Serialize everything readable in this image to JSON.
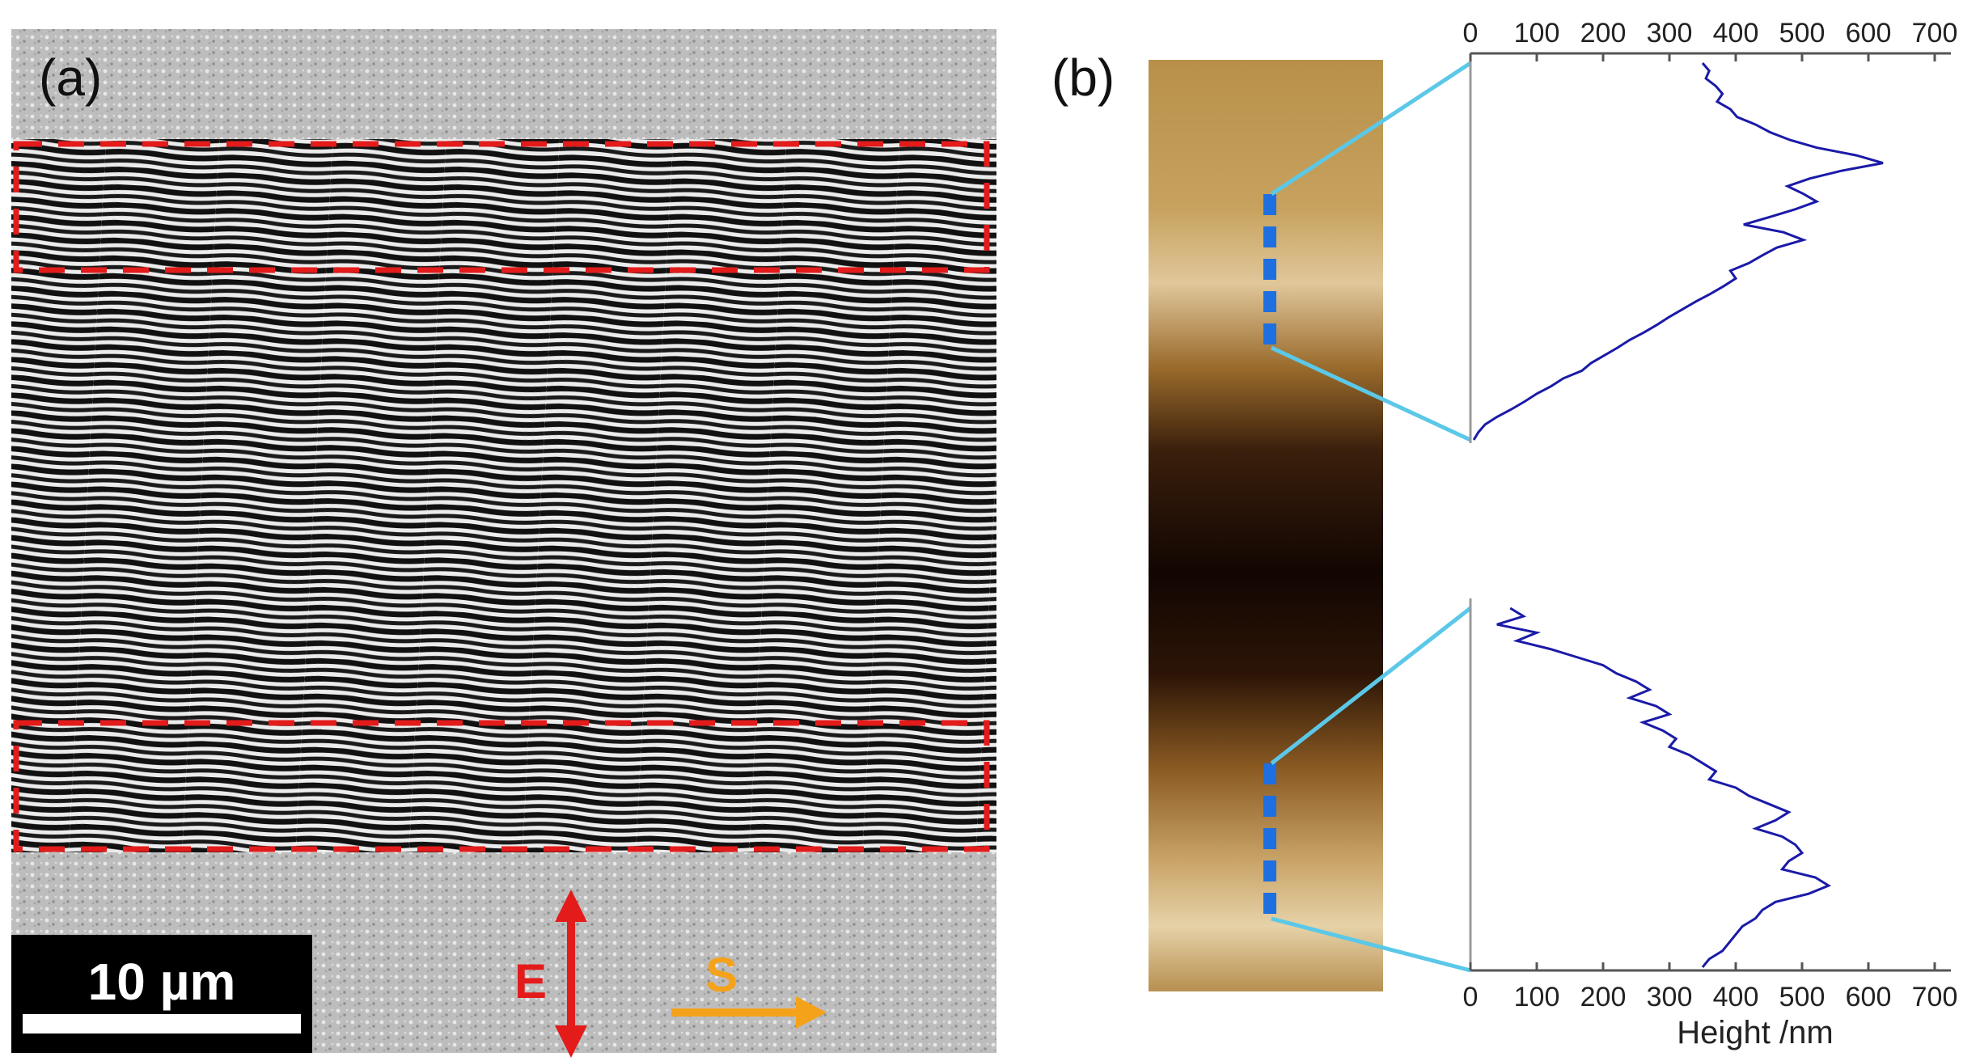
{
  "panel_a": {
    "label": "(a)",
    "scale_bar_label": "10 µm",
    "field_label": "E",
    "scan_label": "S",
    "colors": {
      "field": "#e31b1b",
      "scan": "#f5a21b",
      "roi_box": "#e31b1b"
    }
  },
  "panel_b": {
    "label": "(b)",
    "marker_color": "#1e6fe0",
    "connector_color": "#5bc8e8"
  },
  "chart_data": [
    {
      "type": "line",
      "orientation": "profile-vertical",
      "title": "",
      "xlabel": "",
      "ylabel": "",
      "xlim": [
        0,
        700
      ],
      "x_ticks": [
        "0",
        "100",
        "200",
        "300",
        "400",
        "500",
        "600",
        "700"
      ],
      "axis_position": "top",
      "series": [
        {
          "color": "#1a1aa8",
          "values": [
            350,
            360,
            355,
            370,
            380,
            372,
            392,
            402,
            430,
            452,
            482,
            522,
            582,
            622,
            560,
            512,
            478,
            502,
            522,
            490,
            452,
            412,
            472,
            502,
            462,
            440,
            420,
            392,
            400,
            382,
            362,
            340,
            320,
            300,
            282,
            262,
            240,
            222,
            202,
            182,
            168,
            140,
            122,
            100,
            82,
            62,
            40,
            22,
            12,
            5
          ]
        }
      ]
    },
    {
      "type": "line",
      "orientation": "profile-vertical",
      "title": "",
      "xlabel": "Height /nm",
      "ylabel": "",
      "xlim": [
        0,
        700
      ],
      "x_ticks": [
        "0",
        "100",
        "200",
        "300",
        "400",
        "500",
        "600",
        "700"
      ],
      "axis_position": "bottom",
      "series": [
        {
          "color": "#1a1aa8",
          "values": [
            60,
            80,
            40,
            100,
            70,
            120,
            160,
            200,
            220,
            250,
            270,
            240,
            280,
            300,
            260,
            290,
            310,
            300,
            330,
            350,
            370,
            360,
            400,
            420,
            450,
            480,
            460,
            430,
            470,
            490,
            500,
            480,
            470,
            520,
            540,
            510,
            460,
            440,
            430,
            410,
            400,
            390,
            380,
            360,
            350
          ]
        }
      ]
    }
  ]
}
